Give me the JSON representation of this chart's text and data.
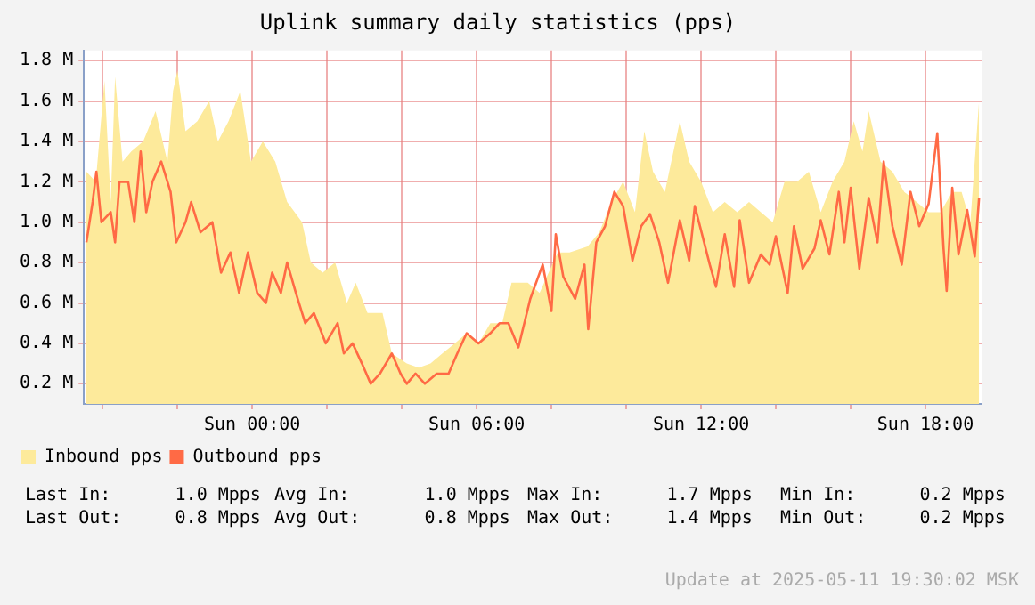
{
  "chart_data": {
    "type": "area",
    "title": "Uplink summary daily statistics (pps)",
    "xlim": [
      "2025-05-10T19:30",
      "2025-05-11T19:30"
    ],
    "xticks": [
      {
        "value": "2025-05-10T20:00",
        "label": null
      },
      {
        "value": "2025-05-10T22:00",
        "label": null
      },
      {
        "value": "2025-05-11T00:00",
        "label": "Sun 00:00"
      },
      {
        "value": "2025-05-11T02:00",
        "label": null
      },
      {
        "value": "2025-05-11T04:00",
        "label": null
      },
      {
        "value": "2025-05-11T06:00",
        "label": "Sun 06:00"
      },
      {
        "value": "2025-05-11T08:00",
        "label": null
      },
      {
        "value": "2025-05-11T10:00",
        "label": null
      },
      {
        "value": "2025-05-11T12:00",
        "label": "Sun 12:00"
      },
      {
        "value": "2025-05-11T14:00",
        "label": null
      },
      {
        "value": "2025-05-11T16:00",
        "label": null
      },
      {
        "value": "2025-05-11T18:00",
        "label": "Sun 18:00"
      }
    ],
    "ylim": [
      0.1,
      1.85
    ],
    "yticks": [
      {
        "value": 0.2,
        "label": "0.2 M"
      },
      {
        "value": 0.4,
        "label": "0.4 M"
      },
      {
        "value": 0.6,
        "label": "0.6 M"
      },
      {
        "value": 0.8,
        "label": "0.8 M"
      },
      {
        "value": 1.0,
        "label": "1.0 M"
      },
      {
        "value": 1.2,
        "label": "1.2 M"
      },
      {
        "value": 1.4,
        "label": "1.4 M"
      },
      {
        "value": 1.6,
        "label": "1.6 M"
      },
      {
        "value": 1.8,
        "label": "1.8 M"
      }
    ],
    "grid": true,
    "legend": "bottom left",
    "marker": "none",
    "series": [
      {
        "name": "Inbound pps",
        "color": "#fdea9b",
        "x": [
          "2025-05-10T19:34",
          "2025-05-10T19:49",
          "2025-05-10T20:03",
          "2025-05-10T20:13",
          "2025-05-10T20:20",
          "2025-05-10T20:32",
          "2025-05-10T20:46",
          "2025-05-10T21:05",
          "2025-05-10T21:25",
          "2025-05-10T21:44",
          "2025-05-10T21:53",
          "2025-05-10T22:00",
          "2025-05-10T22:13",
          "2025-05-10T22:32",
          "2025-05-10T22:51",
          "2025-05-10T23:05",
          "2025-05-10T23:22",
          "2025-05-10T23:41",
          "2025-05-10T23:58",
          "2025-05-11T00:17",
          "2025-05-11T00:37",
          "2025-05-11T00:56",
          "2025-05-11T01:20",
          "2025-05-11T01:34",
          "2025-05-11T01:53",
          "2025-05-11T02:13",
          "2025-05-11T02:32",
          "2025-05-11T02:46",
          "2025-05-11T03:05",
          "2025-05-11T03:29",
          "2025-05-11T03:44",
          "2025-05-11T04:08",
          "2025-05-11T04:27",
          "2025-05-11T04:46",
          "2025-05-11T05:05",
          "2025-05-11T05:25",
          "2025-05-11T05:44",
          "2025-05-11T06:03",
          "2025-05-11T06:22",
          "2025-05-11T06:41",
          "2025-05-11T06:56",
          "2025-05-11T07:22",
          "2025-05-11T07:41",
          "2025-05-11T08:10",
          "2025-05-11T08:29",
          "2025-05-11T08:58",
          "2025-05-11T09:17",
          "2025-05-11T09:36",
          "2025-05-11T09:55",
          "2025-05-11T10:14",
          "2025-05-11T10:29",
          "2025-05-11T10:43",
          "2025-05-11T11:02",
          "2025-05-11T11:26",
          "2025-05-11T11:41",
          "2025-05-11T12:00",
          "2025-05-11T12:19",
          "2025-05-11T12:38",
          "2025-05-11T12:58",
          "2025-05-11T13:17",
          "2025-05-11T13:36",
          "2025-05-11T13:55",
          "2025-05-11T14:14",
          "2025-05-11T14:34",
          "2025-05-11T14:53",
          "2025-05-11T15:12",
          "2025-05-11T15:31",
          "2025-05-11T15:50",
          "2025-05-11T16:05",
          "2025-05-11T16:19",
          "2025-05-11T16:29",
          "2025-05-11T16:48",
          "2025-05-11T17:07",
          "2025-05-11T17:26",
          "2025-05-11T17:46",
          "2025-05-11T18:05",
          "2025-05-11T18:24",
          "2025-05-11T18:43",
          "2025-05-11T18:58",
          "2025-05-11T19:12",
          "2025-05-11T19:26"
        ],
        "values": [
          1.25,
          1.2,
          1.7,
          1.1,
          1.72,
          1.3,
          1.35,
          1.4,
          1.55,
          1.3,
          1.65,
          1.75,
          1.45,
          1.5,
          1.6,
          1.4,
          1.5,
          1.65,
          1.3,
          1.4,
          1.3,
          1.1,
          1.0,
          0.8,
          0.75,
          0.8,
          0.6,
          0.7,
          0.55,
          0.55,
          0.35,
          0.3,
          0.28,
          0.3,
          0.35,
          0.4,
          0.45,
          0.4,
          0.5,
          0.5,
          0.7,
          0.7,
          0.65,
          0.85,
          0.85,
          0.88,
          0.95,
          1.1,
          1.2,
          1.05,
          1.45,
          1.25,
          1.15,
          1.5,
          1.3,
          1.2,
          1.05,
          1.1,
          1.05,
          1.1,
          1.05,
          1.0,
          1.2,
          1.2,
          1.25,
          1.05,
          1.2,
          1.3,
          1.5,
          1.35,
          1.55,
          1.3,
          1.25,
          1.15,
          1.1,
          1.05,
          1.05,
          1.15,
          1.15,
          1.0,
          1.6
        ]
      },
      {
        "name": "Outbound pps",
        "type": "line",
        "color": "#ff6a45",
        "x": [
          "2025-05-10T19:34",
          "2025-05-10T19:44",
          "2025-05-10T19:50",
          "2025-05-10T19:58",
          "2025-05-10T20:13",
          "2025-05-10T20:20",
          "2025-05-10T20:27",
          "2025-05-10T20:41",
          "2025-05-10T20:51",
          "2025-05-10T21:01",
          "2025-05-10T21:10",
          "2025-05-10T21:20",
          "2025-05-10T21:34",
          "2025-05-10T21:49",
          "2025-05-10T21:58",
          "2025-05-10T22:13",
          "2025-05-10T22:22",
          "2025-05-10T22:37",
          "2025-05-10T22:56",
          "2025-05-10T23:10",
          "2025-05-10T23:25",
          "2025-05-10T23:39",
          "2025-05-10T23:53",
          "2025-05-11T00:08",
          "2025-05-11T00:22",
          "2025-05-11T00:32",
          "2025-05-11T00:46",
          "2025-05-11T00:56",
          "2025-05-11T01:10",
          "2025-05-11T01:25",
          "2025-05-11T01:39",
          "2025-05-11T01:58",
          "2025-05-11T02:17",
          "2025-05-11T02:27",
          "2025-05-11T02:41",
          "2025-05-11T02:56",
          "2025-05-11T03:10",
          "2025-05-11T03:25",
          "2025-05-11T03:44",
          "2025-05-11T03:58",
          "2025-05-11T04:08",
          "2025-05-11T04:22",
          "2025-05-11T04:37",
          "2025-05-11T04:56",
          "2025-05-11T05:15",
          "2025-05-11T05:29",
          "2025-05-11T05:44",
          "2025-05-11T06:03",
          "2025-05-11T06:22",
          "2025-05-11T06:37",
          "2025-05-11T06:51",
          "2025-05-11T07:07",
          "2025-05-11T07:26",
          "2025-05-11T07:46",
          "2025-05-11T08:00",
          "2025-05-11T08:07",
          "2025-05-11T08:19",
          "2025-05-11T08:38",
          "2025-05-11T08:53",
          "2025-05-11T08:59",
          "2025-05-11T09:12",
          "2025-05-11T09:26",
          "2025-05-11T09:41",
          "2025-05-11T09:55",
          "2025-05-11T10:10",
          "2025-05-11T10:24",
          "2025-05-11T10:38",
          "2025-05-11T10:53",
          "2025-05-11T11:07",
          "2025-05-11T11:26",
          "2025-05-11T11:41",
          "2025-05-11T11:50",
          "2025-05-11T12:14",
          "2025-05-11T12:24",
          "2025-05-11T12:38",
          "2025-05-11T12:53",
          "2025-05-11T13:02",
          "2025-05-11T13:17",
          "2025-05-11T13:36",
          "2025-05-11T13:50",
          "2025-05-11T14:00",
          "2025-05-11T14:19",
          "2025-05-11T14:29",
          "2025-05-11T14:43",
          "2025-05-11T15:02",
          "2025-05-11T15:12",
          "2025-05-11T15:26",
          "2025-05-11T15:41",
          "2025-05-11T15:50",
          "2025-05-11T16:00",
          "2025-05-11T16:14",
          "2025-05-11T16:29",
          "2025-05-11T16:43",
          "2025-05-11T16:53",
          "2025-05-11T17:07",
          "2025-05-11T17:22",
          "2025-05-11T17:36",
          "2025-05-11T17:50",
          "2025-05-11T18:05",
          "2025-05-11T18:19",
          "2025-05-11T18:29",
          "2025-05-11T18:34",
          "2025-05-11T18:43",
          "2025-05-11T18:53",
          "2025-05-11T19:07",
          "2025-05-11T19:19",
          "2025-05-11T19:26"
        ],
        "values": [
          0.9,
          1.1,
          1.25,
          1.0,
          1.05,
          0.9,
          1.2,
          1.2,
          1.0,
          1.35,
          1.05,
          1.2,
          1.3,
          1.15,
          0.9,
          1.0,
          1.1,
          0.95,
          1.0,
          0.75,
          0.85,
          0.65,
          0.85,
          0.65,
          0.6,
          0.75,
          0.65,
          0.8,
          0.65,
          0.5,
          0.55,
          0.4,
          0.5,
          0.35,
          0.4,
          0.3,
          0.2,
          0.25,
          0.35,
          0.25,
          0.2,
          0.25,
          0.2,
          0.25,
          0.25,
          0.35,
          0.45,
          0.4,
          0.45,
          0.5,
          0.5,
          0.38,
          0.62,
          0.79,
          0.56,
          0.94,
          0.73,
          0.62,
          0.79,
          0.47,
          0.9,
          0.98,
          1.15,
          1.08,
          0.81,
          0.98,
          1.04,
          0.9,
          0.7,
          1.01,
          0.81,
          1.08,
          0.79,
          0.68,
          0.94,
          0.68,
          1.01,
          0.7,
          0.84,
          0.79,
          0.93,
          0.65,
          0.98,
          0.77,
          0.87,
          1.01,
          0.84,
          1.15,
          0.9,
          1.17,
          0.77,
          1.12,
          0.9,
          1.3,
          0.98,
          0.79,
          1.15,
          0.98,
          1.09,
          1.44,
          0.87,
          0.66,
          1.17,
          0.84,
          1.06,
          0.83,
          1.12
        ]
      }
    ],
    "annotations": [
      "Last In:      1.0 Mpps",
      "Avg In:       1.0 Mpps",
      "Max In:      1.7 Mpps",
      "Min In:      0.2 Mpps",
      "Last Out:     0.8 Mpps",
      "Avg Out:      0.8 Mpps",
      "Max Out:     1.4 Mpps",
      "Min Out:     0.2 Mpps",
      "Update at 2025-05-11 19:30:02 MSK"
    ]
  }
}
